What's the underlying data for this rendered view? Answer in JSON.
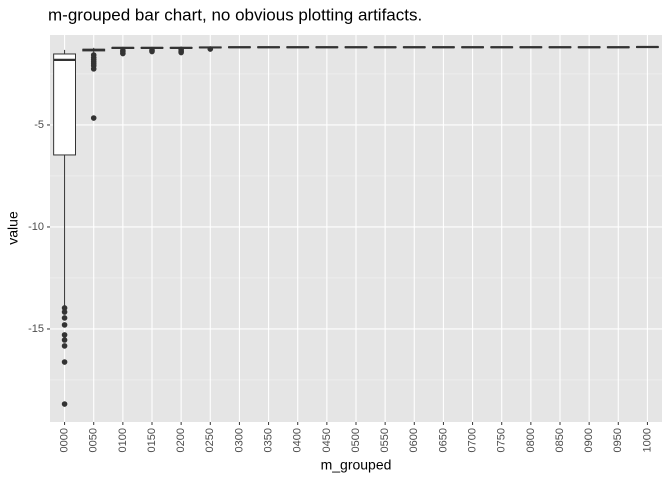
{
  "chart_data": {
    "type": "boxplot",
    "title": "m-grouped bar chart, no obvious plotting artifacts.",
    "x_label": "m_grouped",
    "y_label": "value",
    "categories": [
      "0000",
      "0050",
      "0100",
      "0150",
      "0200",
      "0250",
      "0300",
      "0350",
      "0400",
      "0450",
      "0500",
      "0550",
      "0600",
      "0650",
      "0700",
      "0750",
      "0800",
      "0850",
      "0900",
      "0950",
      "1000"
    ],
    "boxes": [
      {
        "low": -13.9,
        "q1": -6.47,
        "median": -1.81,
        "q3": -1.52,
        "high": -1.32,
        "outliers": [
          -13.97,
          -14.17,
          -14.46,
          -14.8,
          -15.29,
          -15.54,
          -15.83,
          -16.62,
          -18.68
        ]
      },
      {
        "low": -1.45,
        "q1": -1.37,
        "median": -1.32,
        "q3": -1.29,
        "high": -1.22,
        "outliers": [
          -1.57,
          -1.7,
          -1.8,
          -1.9,
          -2.0,
          -2.1,
          -2.25,
          -4.66
        ]
      },
      {
        "low": -1.3,
        "q1": -1.25,
        "median": -1.22,
        "q3": -1.2,
        "high": -1.17,
        "outliers": [
          -1.35,
          -1.42,
          -1.5
        ]
      },
      {
        "low": -1.27,
        "q1": -1.24,
        "median": -1.22,
        "q3": -1.2,
        "high": -1.17,
        "outliers": [
          -1.33,
          -1.4
        ]
      },
      {
        "low": -1.27,
        "q1": -1.24,
        "median": -1.22,
        "q3": -1.2,
        "high": -1.17,
        "outliers": [
          -1.3,
          -1.38,
          -1.45
        ]
      },
      {
        "low": -1.25,
        "q1": -1.22,
        "median": -1.2,
        "q3": -1.18,
        "high": -1.15,
        "outliers": [
          -1.28
        ]
      },
      {
        "low": -1.23,
        "q1": -1.21,
        "median": -1.19,
        "q3": -1.17,
        "high": -1.15,
        "outliers": []
      },
      {
        "low": -1.23,
        "q1": -1.21,
        "median": -1.19,
        "q3": -1.17,
        "high": -1.15,
        "outliers": []
      },
      {
        "low": -1.23,
        "q1": -1.21,
        "median": -1.19,
        "q3": -1.17,
        "high": -1.15,
        "outliers": []
      },
      {
        "low": -1.23,
        "q1": -1.21,
        "median": -1.19,
        "q3": -1.17,
        "high": -1.15,
        "outliers": []
      },
      {
        "low": -1.23,
        "q1": -1.21,
        "median": -1.19,
        "q3": -1.17,
        "high": -1.15,
        "outliers": []
      },
      {
        "low": -1.23,
        "q1": -1.21,
        "median": -1.19,
        "q3": -1.17,
        "high": -1.15,
        "outliers": []
      },
      {
        "low": -1.23,
        "q1": -1.21,
        "median": -1.19,
        "q3": -1.17,
        "high": -1.15,
        "outliers": []
      },
      {
        "low": -1.23,
        "q1": -1.21,
        "median": -1.19,
        "q3": -1.17,
        "high": -1.15,
        "outliers": []
      },
      {
        "low": -1.23,
        "q1": -1.21,
        "median": -1.19,
        "q3": -1.17,
        "high": -1.15,
        "outliers": []
      },
      {
        "low": -1.23,
        "q1": -1.21,
        "median": -1.19,
        "q3": -1.17,
        "high": -1.15,
        "outliers": []
      },
      {
        "low": -1.23,
        "q1": -1.21,
        "median": -1.19,
        "q3": -1.17,
        "high": -1.15,
        "outliers": []
      },
      {
        "low": -1.23,
        "q1": -1.21,
        "median": -1.19,
        "q3": -1.17,
        "high": -1.15,
        "outliers": []
      },
      {
        "low": -1.23,
        "q1": -1.21,
        "median": -1.19,
        "q3": -1.17,
        "high": -1.15,
        "outliers": []
      },
      {
        "low": -1.23,
        "q1": -1.21,
        "median": -1.19,
        "q3": -1.17,
        "high": -1.15,
        "outliers": []
      },
      {
        "low": -1.22,
        "q1": -1.2,
        "median": -1.18,
        "q3": -1.16,
        "high": -1.14,
        "outliers": []
      }
    ],
    "ylim": [
      -19.56,
      -0.59
    ],
    "yticks": [
      -15,
      -10,
      -5
    ],
    "grid": true,
    "box_color": "#333333",
    "box_fill": "#ffffff",
    "panel_color": "#e5e5e5"
  }
}
